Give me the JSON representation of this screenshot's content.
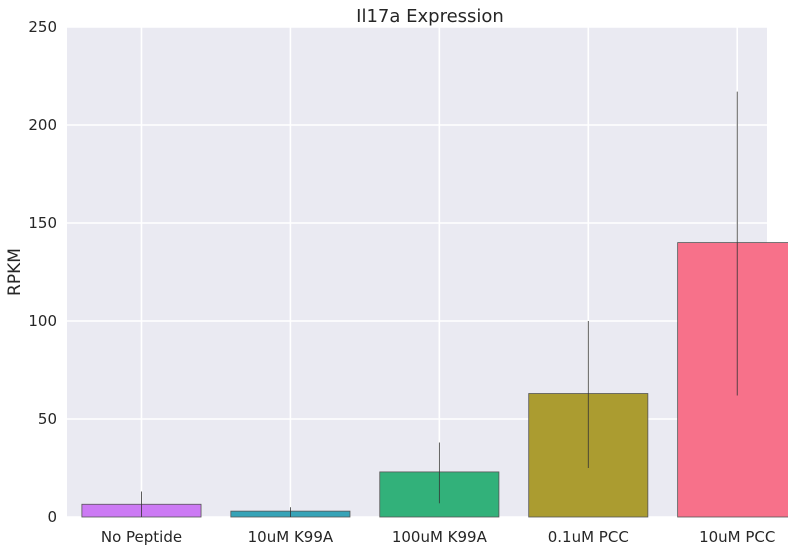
{
  "chart_data": {
    "type": "bar",
    "title": "Il17a Expression",
    "xlabel": "",
    "ylabel": "RPKM",
    "ylim": [
      0,
      250
    ],
    "yticks": [
      "0",
      "50",
      "100",
      "150",
      "200",
      "250"
    ],
    "grid": true,
    "categories": [
      "No Peptide",
      "10uM K99A",
      "100uM K99A",
      "0.1uM PCC",
      "10uM PCC"
    ],
    "values": [
      6.5,
      3,
      23,
      63,
      140
    ],
    "error_low": [
      0,
      0,
      7,
      25,
      62
    ],
    "error_high": [
      13,
      5,
      38,
      100,
      217
    ],
    "colors": [
      "#cc7af4",
      "#36a3b7",
      "#32b17a",
      "#ab9c30",
      "#f7718a"
    ],
    "background": "#eaeaf2"
  }
}
